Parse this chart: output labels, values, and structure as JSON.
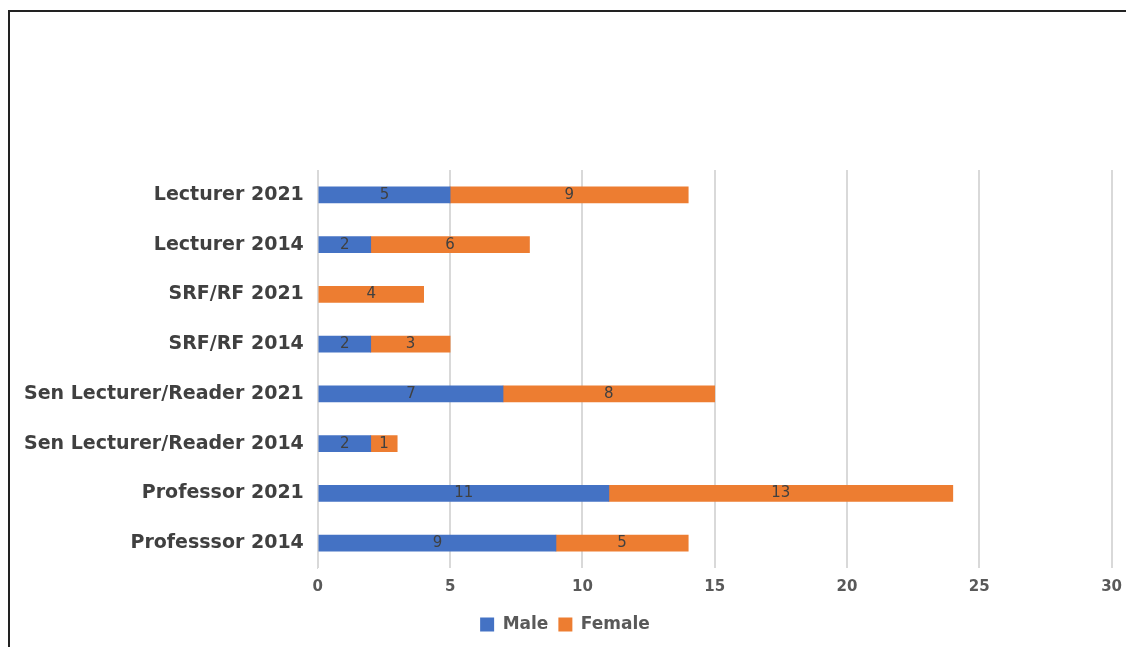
{
  "chart_data": {
    "type": "bar",
    "orientation": "horizontal",
    "stacked": true,
    "categories": [
      "Lecturer 2021",
      "Lecturer 2014",
      "SRF/RF 2021",
      "SRF/RF 2014",
      "Sen Lecturer/Reader 2021",
      "Sen Lecturer/Reader 2014",
      "Professor 2021",
      "Professsor 2014"
    ],
    "series": [
      {
        "name": "Male",
        "color": "#4472c4",
        "values": [
          5,
          2,
          null,
          2,
          7,
          2,
          11,
          9
        ]
      },
      {
        "name": "Female",
        "color": "#ed7d31",
        "values": [
          9,
          6,
          4,
          3,
          8,
          1,
          13,
          5
        ]
      }
    ],
    "xlim": [
      0,
      30
    ],
    "xticks": [
      0,
      5,
      10,
      15,
      20,
      25,
      30
    ],
    "grid": "x",
    "legend": "bottom",
    "data_labels": true
  }
}
